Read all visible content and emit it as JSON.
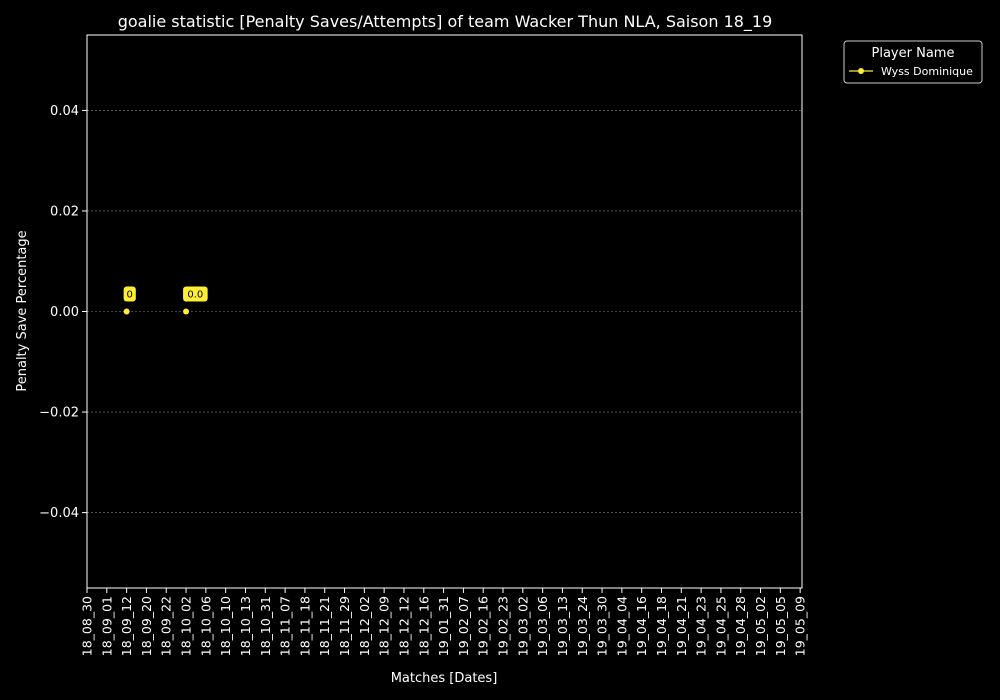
{
  "chart_data": {
    "type": "line",
    "title": "goalie statistic [Penalty Saves/Attempts] of team Wacker Thun NLA, Saison 18_19",
    "xlabel": "Matches [Dates]",
    "ylabel": "Penalty Save Percentage",
    "categories": [
      "18_08_30",
      "18_09_01",
      "18_09_12",
      "18_09_20",
      "18_09_22",
      "18_10_02",
      "18_10_06",
      "18_10_10",
      "18_10_13",
      "18_10_31",
      "18_11_07",
      "18_11_18",
      "18_11_21",
      "18_11_29",
      "18_12_02",
      "18_12_09",
      "18_12_12",
      "18_12_16",
      "19_01_31",
      "19_02_07",
      "19_02_16",
      "19_02_23",
      "19_03_02",
      "19_03_06",
      "19_03_13",
      "19_03_24",
      "19_03_30",
      "19_04_04",
      "19_04_16",
      "19_04_18",
      "19_04_21",
      "19_04_23",
      "19_04_25",
      "19_04_28",
      "19_05_02",
      "19_05_05",
      "19_05_09"
    ],
    "ylim": [
      -0.055,
      0.055
    ],
    "yticks": [
      -0.04,
      -0.02,
      0.0,
      0.02,
      0.04
    ],
    "ytick_labels": [
      "−0.04",
      "−0.02",
      "0.00",
      "0.02",
      "0.04"
    ],
    "grid": true,
    "legend": {
      "title": "Player Name",
      "placement": "outside-top-right"
    },
    "series": [
      {
        "name": "Wyss Dominique",
        "color": "#ffee33",
        "points": [
          {
            "x": "18_09_12",
            "y": 0.0,
            "label": "0"
          },
          {
            "x": "18_10_02",
            "y": 0.0,
            "label": "0.0"
          }
        ]
      }
    ]
  }
}
